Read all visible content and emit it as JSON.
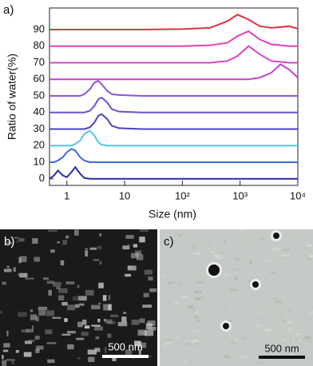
{
  "chart_data": {
    "type": "line",
    "panel_label": "a)",
    "x_label": "Size (nm)",
    "y_label": "Ratio of water(%)",
    "x_scale": "log",
    "x": [
      0.5,
      0.6,
      0.7,
      0.85,
      1,
      1.2,
      1.4,
      1.7,
      2,
      2.5,
      3,
      3.5,
      4,
      5,
      6,
      8,
      20,
      100,
      300,
      600,
      900,
      1400,
      2200,
      3500,
      5000,
      7000,
      10000
    ],
    "xlim": [
      0.5,
      10000
    ],
    "xticks": [
      1,
      10,
      {
        "value": 100,
        "label": "10²"
      },
      {
        "value": 1000,
        "label": "10³"
      },
      {
        "value": 10000,
        "label": "10⁴"
      }
    ],
    "ylim": [
      -4,
      103
    ],
    "yticks": [
      0,
      10,
      20,
      30,
      40,
      50,
      60,
      70,
      80,
      90
    ],
    "series": [
      {
        "color": "#2b2ba8",
        "values": [
          0,
          2,
          5,
          2,
          1,
          4,
          7,
          3,
          0.5,
          0,
          0,
          0,
          0,
          0,
          0,
          0,
          0,
          0,
          0,
          0,
          0,
          0,
          0,
          0,
          0,
          0,
          0
        ]
      },
      {
        "color": "#3a6ad8",
        "values": [
          10,
          10,
          11,
          13,
          16,
          18,
          17,
          13,
          11,
          10,
          10,
          10,
          10,
          10,
          10,
          10,
          10,
          10,
          10,
          10,
          10,
          10,
          10,
          10,
          10,
          10,
          10
        ]
      },
      {
        "color": "#4fc8e8",
        "values": [
          20,
          20,
          20,
          20,
          20,
          20,
          21,
          23,
          27,
          29,
          26,
          22,
          20.5,
          20,
          20,
          20,
          20,
          20,
          20,
          20,
          20,
          20,
          20,
          20,
          20,
          20,
          20
        ]
      },
      {
        "color": "#4a3fc8",
        "values": [
          30,
          30,
          30,
          30,
          30,
          30,
          30,
          30,
          30,
          31,
          34,
          38,
          39,
          36,
          32,
          30.5,
          30,
          30,
          30,
          30,
          30,
          30,
          30,
          30,
          30,
          30,
          30
        ]
      },
      {
        "color": "#6650d8",
        "values": [
          40,
          40,
          40,
          40,
          40,
          40,
          40,
          40,
          40,
          41,
          44,
          48,
          49,
          46,
          42,
          40.5,
          40,
          40,
          40,
          40,
          40,
          40,
          40,
          40,
          40,
          40,
          40
        ]
      },
      {
        "color": "#8a55e0",
        "values": [
          50,
          50,
          50,
          50,
          50,
          50,
          50,
          50,
          51,
          54,
          58,
          59,
          57,
          53,
          51,
          50.5,
          50,
          50,
          50,
          50,
          50,
          50,
          50,
          50,
          50,
          50,
          50
        ]
      },
      {
        "color": "#c840d0",
        "values": [
          60,
          60,
          60,
          60,
          60,
          60,
          60,
          60,
          60,
          60,
          60,
          60,
          60,
          60,
          60,
          60,
          60,
          60,
          60,
          60,
          60,
          60,
          61,
          64,
          69,
          66,
          61
        ]
      },
      {
        "color": "#d845c8",
        "values": [
          70,
          70,
          70,
          70,
          70,
          70,
          70,
          70,
          70,
          70,
          70,
          70,
          70,
          70,
          70,
          70,
          70,
          70,
          70,
          71,
          74,
          80,
          75,
          71,
          70.5,
          70,
          70
        ]
      },
      {
        "color": "#e040b8",
        "values": [
          80,
          80,
          80,
          80,
          80,
          80,
          80,
          80,
          80,
          80,
          80,
          80,
          80,
          80,
          80,
          80,
          80,
          80,
          80.5,
          82,
          86,
          89,
          84,
          81,
          80.5,
          80,
          80
        ]
      },
      {
        "color": "#e03040",
        "values": [
          90,
          90,
          90,
          90,
          90,
          90,
          90,
          90,
          90,
          90,
          90,
          90,
          90,
          90,
          90,
          90,
          90,
          90.3,
          91,
          95,
          99,
          96,
          92,
          91,
          91.5,
          92,
          90.5
        ]
      }
    ]
  },
  "panels": [
    {
      "label": "b)",
      "scale_bar": "500 nm"
    },
    {
      "label": "c)",
      "scale_bar": "500 nm"
    }
  ]
}
